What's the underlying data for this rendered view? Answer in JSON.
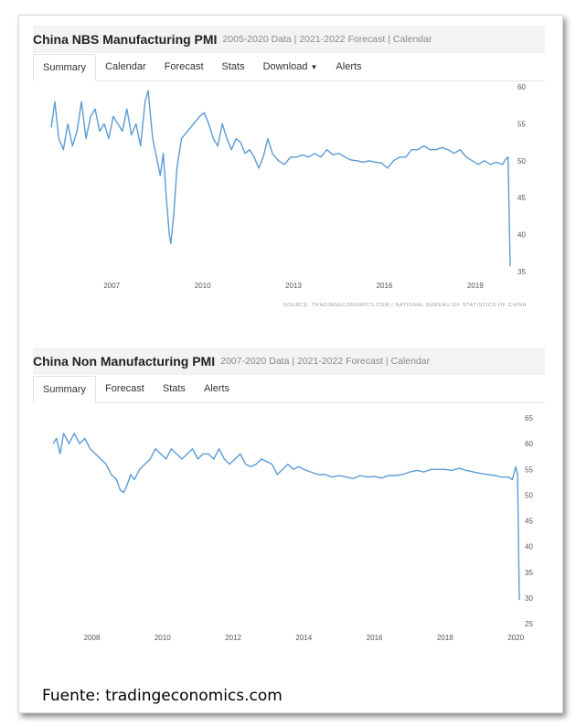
{
  "panels": [
    {
      "title": "China NBS Manufacturing PMI",
      "subtitle": "2005-2020 Data | 2021-2022 Forecast | Calendar",
      "tabs": [
        "Summary",
        "Calendar",
        "Forecast",
        "Stats",
        "Download",
        "Alerts"
      ],
      "active_tab": "Summary",
      "source": "SOURCE: TRADINGECONOMICS.COM  |  NATIONAL BUREAU OF STATISTICS OF CHINA"
    },
    {
      "title": "China Non Manufacturing PMI",
      "subtitle": "2007-2020 Data | 2021-2022 Forecast | Calendar",
      "tabs": [
        "Summary",
        "Forecast",
        "Stats",
        "Alerts"
      ],
      "active_tab": "Summary",
      "source": ""
    }
  ],
  "footer": "Fuente: tradingeconomics.com",
  "chart_data": [
    {
      "type": "line",
      "title": "China NBS Manufacturing PMI",
      "line_color": "#5b9bd5",
      "xlim": [
        2005.0,
        2020.15
      ],
      "ylim": [
        35,
        60
      ],
      "x_ticks": [
        2007,
        2010,
        2013,
        2016,
        2019
      ],
      "y_ticks": [
        35,
        40,
        45,
        50,
        55,
        60
      ],
      "y_axis_side": "right",
      "grid": false,
      "series": [
        {
          "x": [
            2005.0,
            2005.12,
            2005.25,
            2005.4,
            2005.55,
            2005.7,
            2005.85,
            2006.0,
            2006.15,
            2006.3,
            2006.45,
            2006.6,
            2006.75,
            2006.9,
            2007.05,
            2007.2,
            2007.35,
            2007.5,
            2007.65,
            2007.8,
            2007.95,
            2008.1,
            2008.2,
            2008.35,
            2008.5,
            2008.6,
            2008.7,
            2008.8,
            2008.9,
            2008.95,
            2009.05,
            2009.15,
            2009.3,
            2009.5,
            2009.7,
            2009.9,
            2010.05,
            2010.2,
            2010.35,
            2010.5,
            2010.65,
            2010.8,
            2010.95,
            2011.1,
            2011.25,
            2011.4,
            2011.55,
            2011.7,
            2011.85,
            2012.0,
            2012.15,
            2012.3,
            2012.5,
            2012.7,
            2012.9,
            2013.1,
            2013.3,
            2013.5,
            2013.7,
            2013.9,
            2014.1,
            2014.3,
            2014.5,
            2014.7,
            2014.9,
            2015.1,
            2015.3,
            2015.5,
            2015.7,
            2015.9,
            2016.1,
            2016.3,
            2016.5,
            2016.7,
            2016.9,
            2017.1,
            2017.3,
            2017.5,
            2017.7,
            2017.9,
            2018.1,
            2018.3,
            2018.5,
            2018.7,
            2018.9,
            2019.1,
            2019.3,
            2019.5,
            2019.7,
            2019.9,
            2020.0,
            2020.08,
            2020.15
          ],
          "y": [
            54.5,
            58,
            53,
            51.5,
            55,
            52,
            54,
            58,
            53,
            56,
            57,
            54,
            55,
            53,
            56,
            55,
            54,
            57,
            53.5,
            55,
            52,
            58,
            59.5,
            53,
            50,
            48,
            51,
            45,
            40,
            38.8,
            43,
            49,
            53,
            54,
            55,
            56,
            56.5,
            55,
            53,
            52,
            55,
            53,
            51.5,
            53,
            52.5,
            51,
            51.5,
            50.5,
            49,
            50.5,
            53,
            51,
            50,
            49.5,
            50.5,
            50.5,
            50.8,
            50.5,
            51,
            50.5,
            51.5,
            50.8,
            51,
            50.5,
            50.1,
            50,
            49.8,
            50,
            49.8,
            49.7,
            49,
            50,
            50.5,
            50.5,
            51.5,
            51.5,
            52,
            51.5,
            51.5,
            51.8,
            51.5,
            51,
            51.5,
            50.5,
            50,
            49.5,
            50,
            49.5,
            49.8,
            49.5,
            50.2,
            50.5,
            35.7
          ]
        }
      ]
    },
    {
      "type": "line",
      "title": "China Non Manufacturing PMI",
      "line_color": "#5b9bd5",
      "xlim": [
        2006.9,
        2020.1
      ],
      "ylim": [
        25,
        65
      ],
      "x_ticks": [
        2008,
        2010,
        2012,
        2014,
        2016,
        2018,
        2020
      ],
      "y_ticks": [
        25,
        30,
        35,
        40,
        45,
        50,
        55,
        60,
        65
      ],
      "y_axis_side": "right",
      "grid": false,
      "series": [
        {
          "x": [
            2006.9,
            2007.0,
            2007.1,
            2007.2,
            2007.35,
            2007.5,
            2007.65,
            2007.8,
            2007.95,
            2008.1,
            2008.25,
            2008.4,
            2008.55,
            2008.7,
            2008.8,
            2008.9,
            2009.0,
            2009.1,
            2009.2,
            2009.35,
            2009.5,
            2009.65,
            2009.8,
            2009.95,
            2010.1,
            2010.25,
            2010.4,
            2010.55,
            2010.7,
            2010.85,
            2011.0,
            2011.15,
            2011.3,
            2011.45,
            2011.6,
            2011.75,
            2011.9,
            2012.05,
            2012.2,
            2012.35,
            2012.5,
            2012.65,
            2012.8,
            2012.95,
            2013.1,
            2013.25,
            2013.4,
            2013.55,
            2013.7,
            2013.85,
            2014.0,
            2014.2,
            2014.4,
            2014.6,
            2014.8,
            2015.0,
            2015.2,
            2015.4,
            2015.6,
            2015.8,
            2016.0,
            2016.2,
            2016.4,
            2016.6,
            2016.8,
            2017.0,
            2017.2,
            2017.4,
            2017.6,
            2017.8,
            2018.0,
            2018.2,
            2018.4,
            2018.6,
            2018.8,
            2019.0,
            2019.2,
            2019.4,
            2019.6,
            2019.8,
            2019.9,
            2020.0,
            2020.05,
            2020.1
          ],
          "y": [
            60,
            61,
            58,
            62,
            60,
            62,
            60,
            61,
            59,
            58,
            57,
            56,
            54,
            53,
            51,
            50.5,
            52,
            54,
            53,
            55,
            56,
            57,
            59,
            58,
            57,
            59,
            58,
            57,
            58,
            59,
            57,
            58,
            58,
            57,
            59,
            57,
            56,
            57,
            58,
            56,
            55.5,
            56,
            57,
            56.5,
            56,
            54,
            55,
            56,
            55,
            55.5,
            55,
            54.5,
            54,
            54,
            53.5,
            53.8,
            53.5,
            53.2,
            53.8,
            53.5,
            53.6,
            53.3,
            53.8,
            53.8,
            54,
            54.5,
            54.8,
            54.5,
            55,
            55,
            55,
            54.8,
            55.2,
            54.8,
            54.5,
            54.2,
            54,
            53.8,
            53.5,
            53.5,
            53,
            55.5,
            54,
            29.6
          ]
        }
      ]
    }
  ]
}
